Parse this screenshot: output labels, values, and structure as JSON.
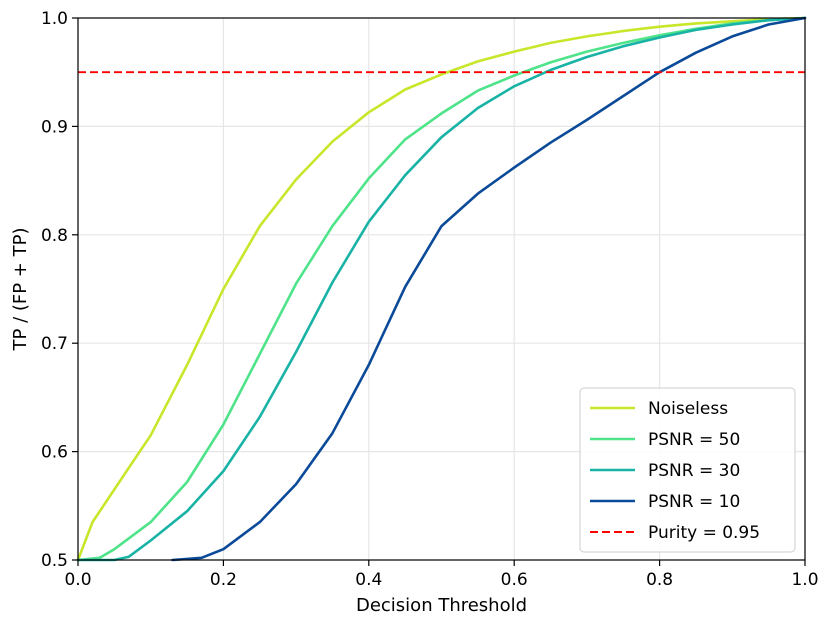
{
  "chart_data": {
    "type": "line",
    "title": "",
    "xlabel": "Decision Threshold",
    "ylabel": "TP / (FP + TP)",
    "xlim": [
      0.0,
      1.0
    ],
    "ylim": [
      0.5,
      1.0
    ],
    "grid": true,
    "legend_position": "bottom-right",
    "x_ticks": [
      "0.0",
      "0.2",
      "0.4",
      "0.6",
      "0.8",
      "1.0"
    ],
    "y_ticks": [
      "0.5",
      "0.6",
      "0.7",
      "0.8",
      "0.9",
      "1.0"
    ],
    "series": [
      {
        "name": "Noiseless",
        "color": "#c8e62a",
        "style": "solid",
        "x": [
          0.0,
          0.02,
          0.05,
          0.1,
          0.15,
          0.2,
          0.25,
          0.3,
          0.35,
          0.4,
          0.45,
          0.5,
          0.55,
          0.6,
          0.65,
          0.7,
          0.75,
          0.8,
          0.85,
          0.9,
          0.95,
          1.0
        ],
        "y": [
          0.5,
          0.535,
          0.565,
          0.615,
          0.68,
          0.75,
          0.808,
          0.851,
          0.886,
          0.913,
          0.934,
          0.948,
          0.96,
          0.969,
          0.977,
          0.983,
          0.988,
          0.992,
          0.995,
          0.997,
          0.999,
          1.0
        ]
      },
      {
        "name": "PSNR = 50",
        "color": "#4fe38a",
        "style": "solid",
        "x": [
          0.0,
          0.03,
          0.05,
          0.1,
          0.15,
          0.2,
          0.25,
          0.3,
          0.35,
          0.4,
          0.45,
          0.5,
          0.55,
          0.6,
          0.65,
          0.7,
          0.75,
          0.8,
          0.85,
          0.9,
          0.95,
          1.0
        ],
        "y": [
          0.5,
          0.502,
          0.51,
          0.535,
          0.572,
          0.625,
          0.69,
          0.755,
          0.808,
          0.852,
          0.888,
          0.912,
          0.933,
          0.947,
          0.959,
          0.969,
          0.977,
          0.984,
          0.99,
          0.995,
          0.998,
          1.0
        ]
      },
      {
        "name": "PSNR = 30",
        "color": "#19b3a6",
        "style": "solid",
        "x": [
          0.0,
          0.05,
          0.07,
          0.1,
          0.15,
          0.2,
          0.25,
          0.3,
          0.35,
          0.4,
          0.45,
          0.5,
          0.55,
          0.6,
          0.65,
          0.7,
          0.75,
          0.8,
          0.85,
          0.9,
          0.95,
          1.0
        ],
        "y": [
          0.5,
          0.5,
          0.503,
          0.518,
          0.545,
          0.582,
          0.632,
          0.692,
          0.756,
          0.812,
          0.855,
          0.89,
          0.917,
          0.937,
          0.952,
          0.964,
          0.974,
          0.982,
          0.989,
          0.994,
          0.998,
          1.0
        ]
      },
      {
        "name": "PSNR = 10",
        "color": "#0b4a99",
        "style": "solid",
        "x": [
          0.13,
          0.17,
          0.2,
          0.25,
          0.3,
          0.35,
          0.4,
          0.45,
          0.5,
          0.55,
          0.6,
          0.65,
          0.7,
          0.75,
          0.8,
          0.85,
          0.9,
          0.95,
          1.0
        ],
        "y": [
          0.5,
          0.502,
          0.51,
          0.535,
          0.57,
          0.617,
          0.68,
          0.752,
          0.808,
          0.838,
          0.862,
          0.885,
          0.906,
          0.928,
          0.95,
          0.968,
          0.983,
          0.994,
          1.0
        ]
      },
      {
        "name": "Purity = 0.95",
        "color": "#ff0000",
        "style": "dashed",
        "x": [
          0.0,
          1.0
        ],
        "y": [
          0.95,
          0.95
        ]
      }
    ]
  }
}
